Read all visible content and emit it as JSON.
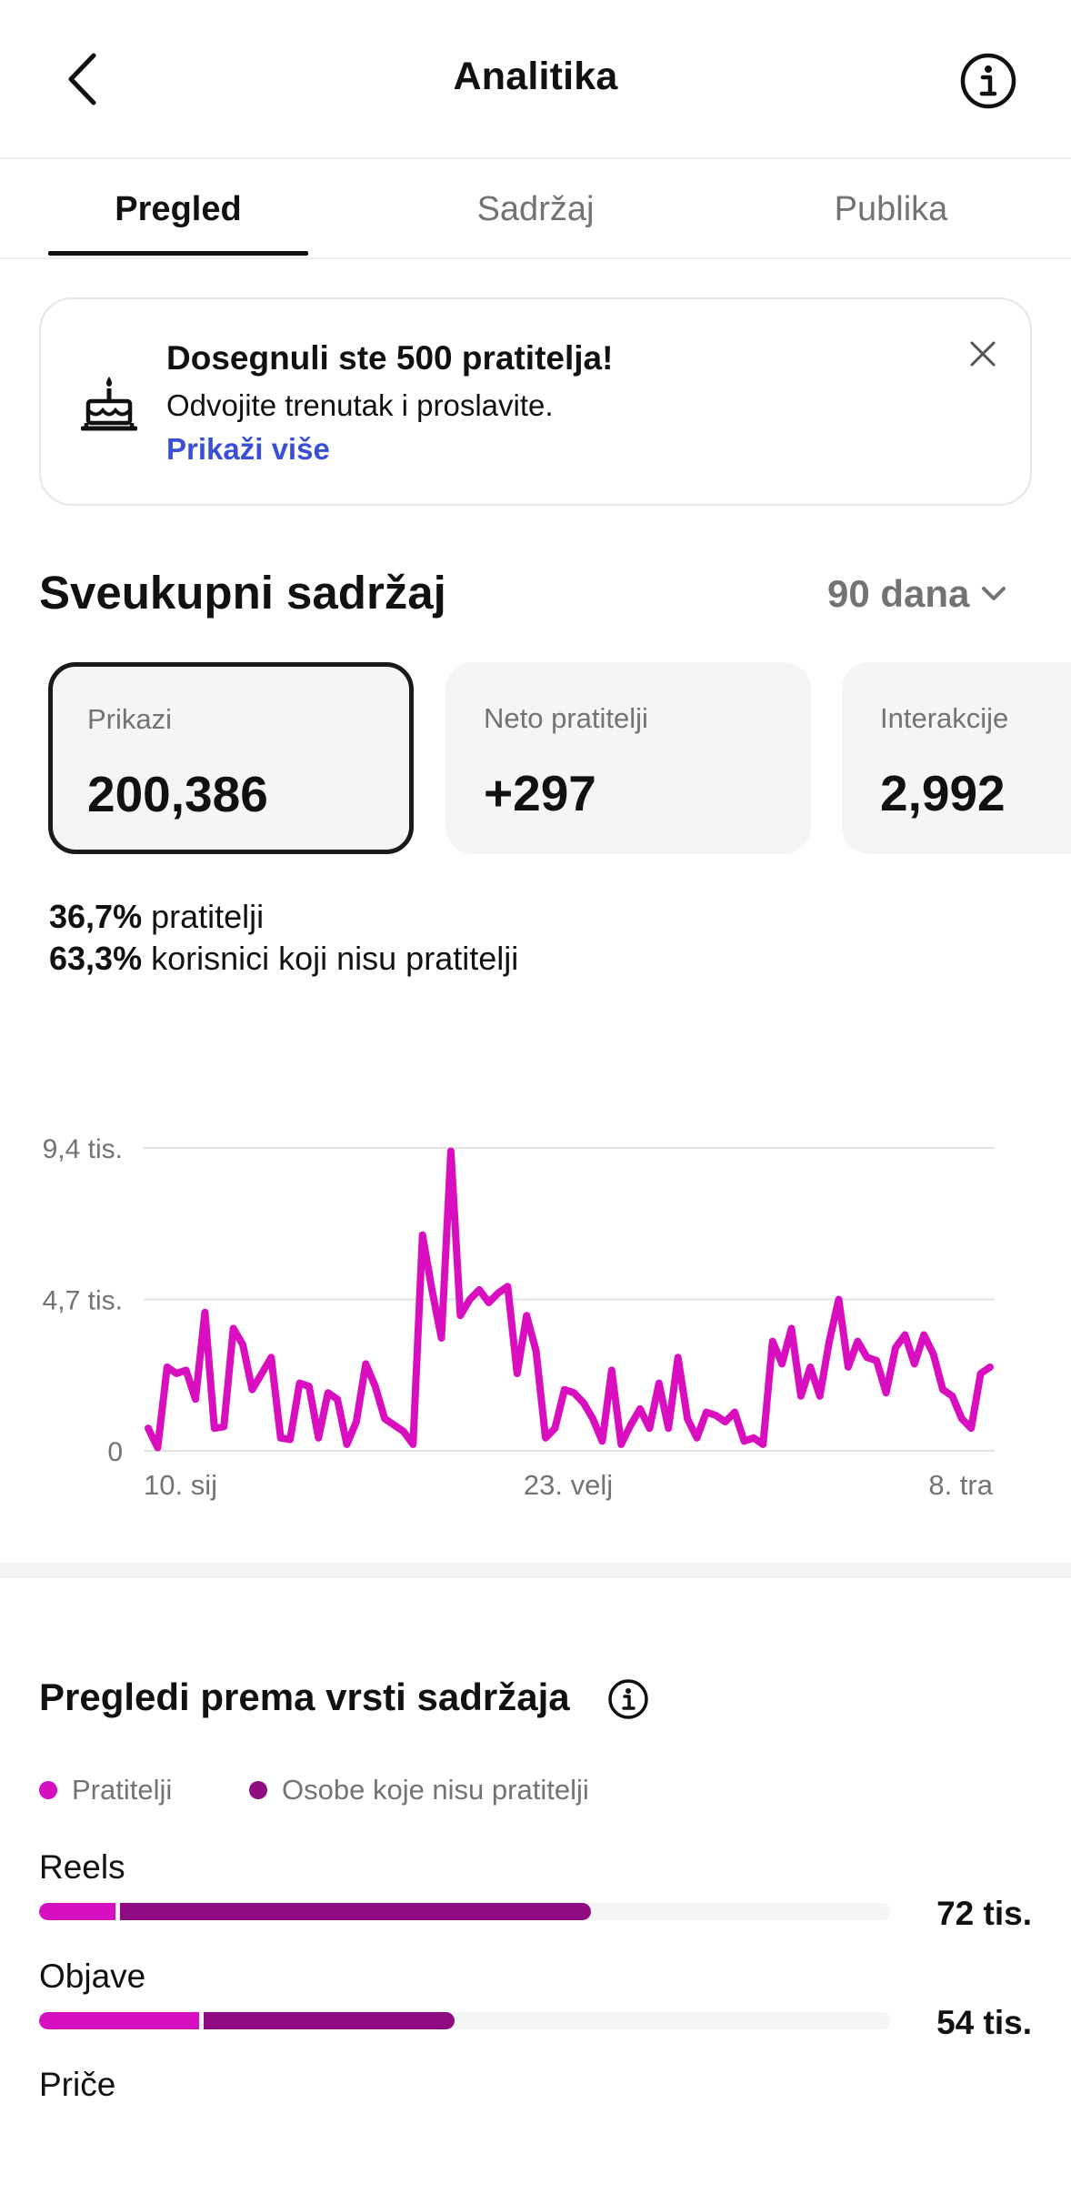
{
  "header": {
    "title": "Analitika",
    "back_icon": "chevron-left-icon",
    "info_icon": "info-icon"
  },
  "tabs": [
    {
      "label": "Pregled",
      "active": true
    },
    {
      "label": "Sadržaj",
      "active": false
    },
    {
      "label": "Publika",
      "active": false
    }
  ],
  "banner": {
    "icon": "cake-icon",
    "title": "Dosegnuli ste 500 pratitelja!",
    "subtitle": "Odvojite trenutak i proslavite.",
    "link": "Prikaži više",
    "close_icon": "close-icon",
    "link_color": "#3a4fd9"
  },
  "overview": {
    "title": "Sveukupni sadržaj",
    "range": "90 dana",
    "cards": [
      {
        "label": "Prikazi",
        "value": "200,386",
        "selected": true
      },
      {
        "label": "Neto pratitelji",
        "value": "+297",
        "selected": false
      },
      {
        "label": "Interakcije",
        "value": "2,992",
        "selected": false
      }
    ],
    "split": [
      {
        "pct": "36,7%",
        "text": "pratitelji"
      },
      {
        "pct": "63,3%",
        "text": "korisnici koji nisu pratitelji"
      }
    ]
  },
  "chart_data": {
    "type": "line",
    "title": "",
    "xlabel": "",
    "ylabel": "",
    "y_ticks": [
      {
        "value": 0,
        "label": "0"
      },
      {
        "value": 4700,
        "label": "4,7 tis."
      },
      {
        "value": 9400,
        "label": "9,4 tis."
      }
    ],
    "x_ticks": [
      "10. sij",
      "23. velj",
      "8. tra"
    ],
    "x_range": [
      "10. sij",
      "8. tra"
    ],
    "ylim": [
      0,
      9400
    ],
    "grid": true,
    "color": "#d90fbf",
    "series": [
      {
        "values": [
          700,
          100,
          2600,
          2400,
          2500,
          1600,
          4300,
          700,
          750,
          3800,
          3300,
          1900,
          2400,
          2900,
          400,
          350,
          2100,
          2000,
          400,
          1800,
          1600,
          200,
          900,
          2700,
          2000,
          1000,
          800,
          600,
          200,
          6700,
          5000,
          3500,
          9300,
          4200,
          4700,
          5000,
          4600,
          4900,
          5100,
          2400,
          4200,
          3100,
          400,
          700,
          1900,
          1800,
          1500,
          1000,
          300,
          2500,
          200,
          800,
          1300,
          700,
          2100,
          700,
          2900,
          1000,
          400,
          1200,
          1100,
          900,
          1200,
          300,
          400,
          200,
          3400,
          2700,
          3800,
          1700,
          2600,
          1700,
          3400,
          4700,
          2600,
          3400,
          2900,
          2800,
          1800,
          3200,
          3600,
          2700,
          3600,
          3000,
          1900,
          1700,
          1000,
          700,
          2400,
          2600
        ]
      }
    ]
  },
  "content_types": {
    "title": "Pregledi prema vrsti sadržaja",
    "info_icon": "info-icon",
    "legend": [
      {
        "label": "Pratitelji",
        "color": "#d60fc1"
      },
      {
        "label": "Osobe koje nisu pratitelji",
        "color": "#8e0b82"
      }
    ],
    "max_value": 112000,
    "items": [
      {
        "label": "Reels",
        "value_label": "72 tis.",
        "followers": 10000,
        "non_followers": 62000
      },
      {
        "label": "Objave",
        "value_label": "54 tis.",
        "followers": 21000,
        "non_followers": 33000
      },
      {
        "label": "Priče"
      }
    ]
  }
}
